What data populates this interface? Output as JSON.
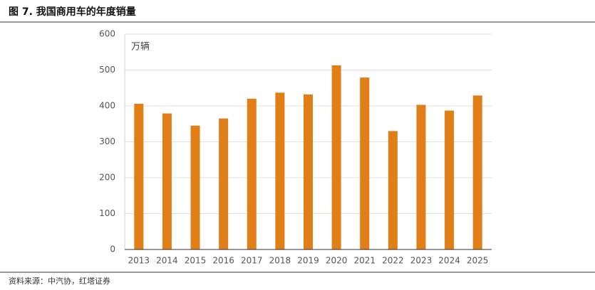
{
  "chart_data": {
    "type": "bar",
    "title": "图 7. 我国商用车的年度销量",
    "unit_label": "万辆",
    "source": "资料来源：中汽协，红塔证券",
    "categories": [
      "2013",
      "2014",
      "2015",
      "2016",
      "2017",
      "2018",
      "2019",
      "2020",
      "2021",
      "2022",
      "2023",
      "2024",
      "2025"
    ],
    "values": [
      406,
      379,
      345,
      365,
      420,
      437,
      432,
      513,
      479,
      330,
      403,
      387,
      429
    ],
    "color": "#e07f17",
    "ylim": [
      0,
      600
    ],
    "yticks": [
      0,
      100,
      200,
      300,
      400,
      500,
      600
    ],
    "grid": true
  }
}
